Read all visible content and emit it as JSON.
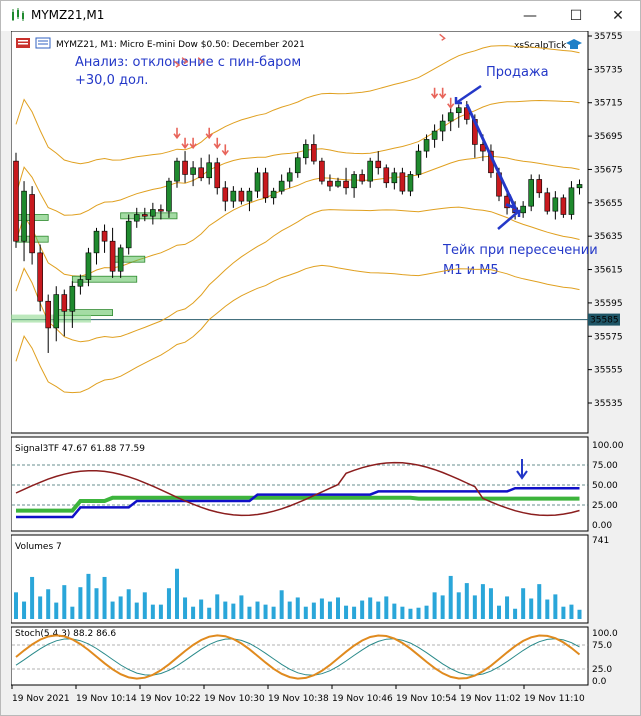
{
  "window": {
    "title": "MYMZ21,M1",
    "minimize_glyph": "—",
    "maximize_glyph": "☐",
    "close_glyph": "✕"
  },
  "header": {
    "symbol_line": "MYMZ21, M1:  Micro E-mini Dow $0.50: December 2021",
    "indicator_name": "xsScalpTick"
  },
  "annotations": {
    "analysis_line1": "Анализ: отклонение с пин-баром",
    "analysis_line2": "+30,0 дол.",
    "sell": "Продажа",
    "take_line1": "Тейк при пересечении",
    "take_line2": "M1 и M5"
  },
  "price_axis": {
    "ticks": [
      "35755",
      "35735",
      "35715",
      "35695",
      "35675",
      "35655",
      "35635",
      "35615",
      "35595",
      "35575",
      "35555",
      "35535"
    ],
    "current_price": "35585"
  },
  "panels": {
    "signal": {
      "label": "Signal3TF 47.67 61.88 77.59",
      "ticks": [
        "100.00",
        "75.00",
        "50.00",
        "25.00",
        "0.00"
      ]
    },
    "volumes": {
      "label": "Volumes 7",
      "top_tick": "741"
    },
    "stoch": {
      "label": "Stoch(5,4,3) 88.2 86.6",
      "ticks": [
        "100.0",
        "75.0",
        "25.0",
        "0.0"
      ]
    }
  },
  "time_axis": {
    "labels": [
      "19 Nov 2021",
      "19 Nov 10:14",
      "19 Nov 10:22",
      "19 Nov 10:30",
      "19 Nov 10:38",
      "19 Nov 10:46",
      "19 Nov 10:54",
      "19 Nov 11:02",
      "19 Nov 11:10"
    ]
  },
  "colors": {
    "bull": "#1f8a2e",
    "bear": "#c8191e",
    "band": "#e0a020",
    "annotation": "#2438c8",
    "signal_red": "#8b1e1e",
    "signal_blue": "#1010c8",
    "signal_green": "#3cb43c",
    "volume": "#2aa6d9",
    "stoch_main": "#e08a1e",
    "stoch_signal": "#2a8a8a"
  },
  "chart_data": {
    "type": "candlestick",
    "title": "MYMZ21, M1:  Micro E-mini Dow $0.50: December 2021",
    "ylim": [
      35525,
      35760
    ],
    "candles": [
      [
        35680,
        35685,
        35628,
        35632
      ],
      [
        35632,
        35668,
        35620,
        35662
      ],
      [
        35660,
        35665,
        35618,
        35625
      ],
      [
        35625,
        35630,
        35590,
        35596
      ],
      [
        35596,
        35600,
        35565,
        35580
      ],
      [
        35580,
        35605,
        35572,
        35600
      ],
      [
        35600,
        35603,
        35575,
        35590
      ],
      [
        35590,
        35608,
        35580,
        35605
      ],
      [
        35605,
        35612,
        35600,
        35609
      ],
      [
        35609,
        35628,
        35605,
        35625
      ],
      [
        35625,
        35640,
        35618,
        35638
      ],
      [
        35638,
        35642,
        35625,
        35632
      ],
      [
        35632,
        35640,
        35610,
        35614
      ],
      [
        35614,
        35630,
        35610,
        35628
      ],
      [
        35628,
        35648,
        35624,
        35644
      ],
      [
        35644,
        35652,
        35640,
        35648
      ],
      [
        35648,
        35652,
        35644,
        35647
      ],
      [
        35647,
        35655,
        35642,
        35651
      ],
      [
        35651,
        35654,
        35645,
        35650
      ],
      [
        35650,
        35670,
        35646,
        35668
      ],
      [
        35668,
        35682,
        35664,
        35680
      ],
      [
        35680,
        35686,
        35667,
        35672
      ],
      [
        35672,
        35680,
        35665,
        35676
      ],
      [
        35676,
        35682,
        35668,
        35670
      ],
      [
        35670,
        35684,
        35666,
        35679
      ],
      [
        35679,
        35682,
        35660,
        35664
      ],
      [
        35664,
        35668,
        35650,
        35656
      ],
      [
        35656,
        35665,
        35652,
        35662
      ],
      [
        35662,
        35664,
        35654,
        35656
      ],
      [
        35656,
        35664,
        35650,
        35662
      ],
      [
        35662,
        35676,
        35658,
        35673
      ],
      [
        35673,
        35676,
        35655,
        35658
      ],
      [
        35658,
        35664,
        35654,
        35662
      ],
      [
        35662,
        35672,
        35660,
        35668
      ],
      [
        35668,
        35676,
        35664,
        35673
      ],
      [
        35673,
        35685,
        35670,
        35682
      ],
      [
        35682,
        35693,
        35678,
        35690
      ],
      [
        35690,
        35696,
        35678,
        35680
      ],
      [
        35680,
        35682,
        35666,
        35668
      ],
      [
        35668,
        35672,
        35662,
        35665
      ],
      [
        35665,
        35670,
        35664,
        35668
      ],
      [
        35668,
        35676,
        35660,
        35664
      ],
      [
        35664,
        35674,
        35658,
        35672
      ],
      [
        35672,
        35675,
        35666,
        35668
      ],
      [
        35668,
        35682,
        35664,
        35680
      ],
      [
        35680,
        35686,
        35672,
        35676
      ],
      [
        35676,
        35678,
        35664,
        35667
      ],
      [
        35667,
        35676,
        35663,
        35673
      ],
      [
        35673,
        35676,
        35660,
        35662
      ],
      [
        35662,
        35674,
        35659,
        35672
      ],
      [
        35672,
        35690,
        35670,
        35686
      ],
      [
        35686,
        35696,
        35682,
        35693
      ],
      [
        35693,
        35702,
        35688,
        35698
      ],
      [
        35698,
        35708,
        35692,
        35704
      ],
      [
        35704,
        35712,
        35698,
        35709
      ],
      [
        35709,
        35714,
        35700,
        35712
      ],
      [
        35712,
        35716,
        35702,
        35705
      ],
      [
        35705,
        35708,
        35682,
        35690
      ],
      [
        35690,
        35696,
        35680,
        35686
      ],
      [
        35686,
        35690,
        35670,
        35673
      ],
      [
        35673,
        35676,
        35656,
        35659
      ],
      [
        35659,
        35664,
        35648,
        35652
      ],
      [
        35652,
        35656,
        35645,
        35649
      ],
      [
        35649,
        35656,
        35646,
        35653
      ],
      [
        35653,
        35672,
        35650,
        35669
      ],
      [
        35669,
        35672,
        35658,
        35661
      ],
      [
        35661,
        35664,
        35648,
        35650
      ],
      [
        35650,
        35662,
        35645,
        35658
      ],
      [
        35658,
        35660,
        35646,
        35648
      ],
      [
        35648,
        35668,
        35645,
        35664
      ],
      [
        35664,
        35669,
        35660,
        35666
      ]
    ],
    "volumes": [
      260,
      170,
      410,
      220,
      290,
      160,
      330,
      120,
      310,
      440,
      300,
      410,
      170,
      220,
      290,
      160,
      260,
      140,
      140,
      300,
      490,
      210,
      120,
      190,
      110,
      240,
      170,
      150,
      230,
      120,
      170,
      140,
      120,
      280,
      170,
      210,
      120,
      160,
      200,
      170,
      210,
      130,
      120,
      180,
      210,
      170,
      220,
      150,
      120,
      100,
      110,
      130,
      260,
      230,
      420,
      260,
      350,
      230,
      340,
      300,
      130,
      220,
      100,
      300,
      200,
      340,
      190,
      240,
      120,
      140,
      90
    ]
  }
}
